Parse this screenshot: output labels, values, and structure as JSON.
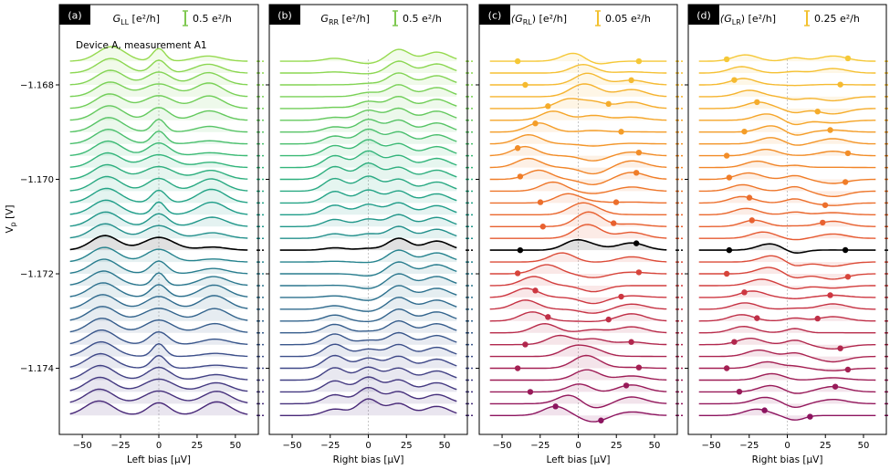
{
  "chart_data": [
    {
      "type": "line",
      "panel_tag": "(a)",
      "title": "G_LL [e²/h]",
      "title_main": "G",
      "title_sub": "LL",
      "title_unit": " [e²/h]",
      "scale_bar_label": "0.5 e²/h",
      "scale_bar_color": "#7ec850",
      "annotation": "Device A, measurement A1",
      "xlabel": "Left bias [μV]",
      "xticks": [
        -50,
        -25,
        0,
        25,
        50
      ],
      "xlim": [
        -65,
        65
      ],
      "ylabel": "V_p [V]",
      "yticks": [
        -1.168,
        -1.17,
        -1.172,
        -1.174
      ],
      "ylim": [
        -1.1754,
        -1.1663
      ],
      "vp_range": [
        -1.175,
        -1.1675
      ],
      "n_traces": 31,
      "highlighted_traces": [
        -1.1715,
        -1.1718
      ],
      "palette": "viridis",
      "peaks_mu_v": [
        -35,
        0,
        35
      ]
    },
    {
      "type": "line",
      "panel_tag": "(b)",
      "title": "G_RR [e²/h]",
      "title_main": "G",
      "title_sub": "RR",
      "title_unit": " [e²/h]",
      "scale_bar_label": "0.5 e²/h",
      "scale_bar_color": "#7ec850",
      "xlabel": "Right bias [μV]",
      "xticks": [
        -50,
        -25,
        0,
        25,
        50
      ],
      "xlim": [
        -65,
        65
      ],
      "ylim": [
        -1.1754,
        -1.1663
      ],
      "vp_range": [
        -1.175,
        -1.1675
      ],
      "n_traces": 31,
      "highlighted_traces": [
        -1.1715,
        -1.1718
      ],
      "palette": "viridis",
      "peaks_mu_v": [
        -20,
        0,
        20,
        45
      ]
    },
    {
      "type": "line",
      "panel_tag": "(c)",
      "title": "A(G_RL) [e²/h]",
      "title_main": "A(G",
      "title_sub": "RL",
      "title_unit": ") [e²/h]",
      "scale_bar_label": "0.05 e²/h",
      "scale_bar_color": "#f2c12e",
      "xlabel": "Left bias [μV]",
      "xticks": [
        -50,
        -25,
        0,
        25,
        50
      ],
      "xlim": [
        -65,
        65
      ],
      "ylim": [
        -1.1754,
        -1.1663
      ],
      "vp_range": [
        -1.175,
        -1.1675
      ],
      "n_traces": 31,
      "highlighted_traces": [
        -1.1715,
        -1.1718
      ],
      "palette": "plasma",
      "markers": "gap edges"
    },
    {
      "type": "line",
      "panel_tag": "(d)",
      "title": "A(G_LR) [e²/h]",
      "title_main": "A(G",
      "title_sub": "LR",
      "title_unit": ") [e²/h]",
      "scale_bar_label": "0.25 e²/h",
      "scale_bar_color": "#f2c12e",
      "xlabel": "Right bias [μV]",
      "xticks": [
        -50,
        -25,
        0,
        25,
        50
      ],
      "xlim": [
        -65,
        65
      ],
      "ylim": [
        -1.1754,
        -1.1663
      ],
      "vp_range": [
        -1.175,
        -1.1675
      ],
      "n_traces": 31,
      "highlighted_traces": [
        -1.1715,
        -1.1718
      ],
      "palette": "plasma",
      "markers": "gap edges"
    }
  ]
}
